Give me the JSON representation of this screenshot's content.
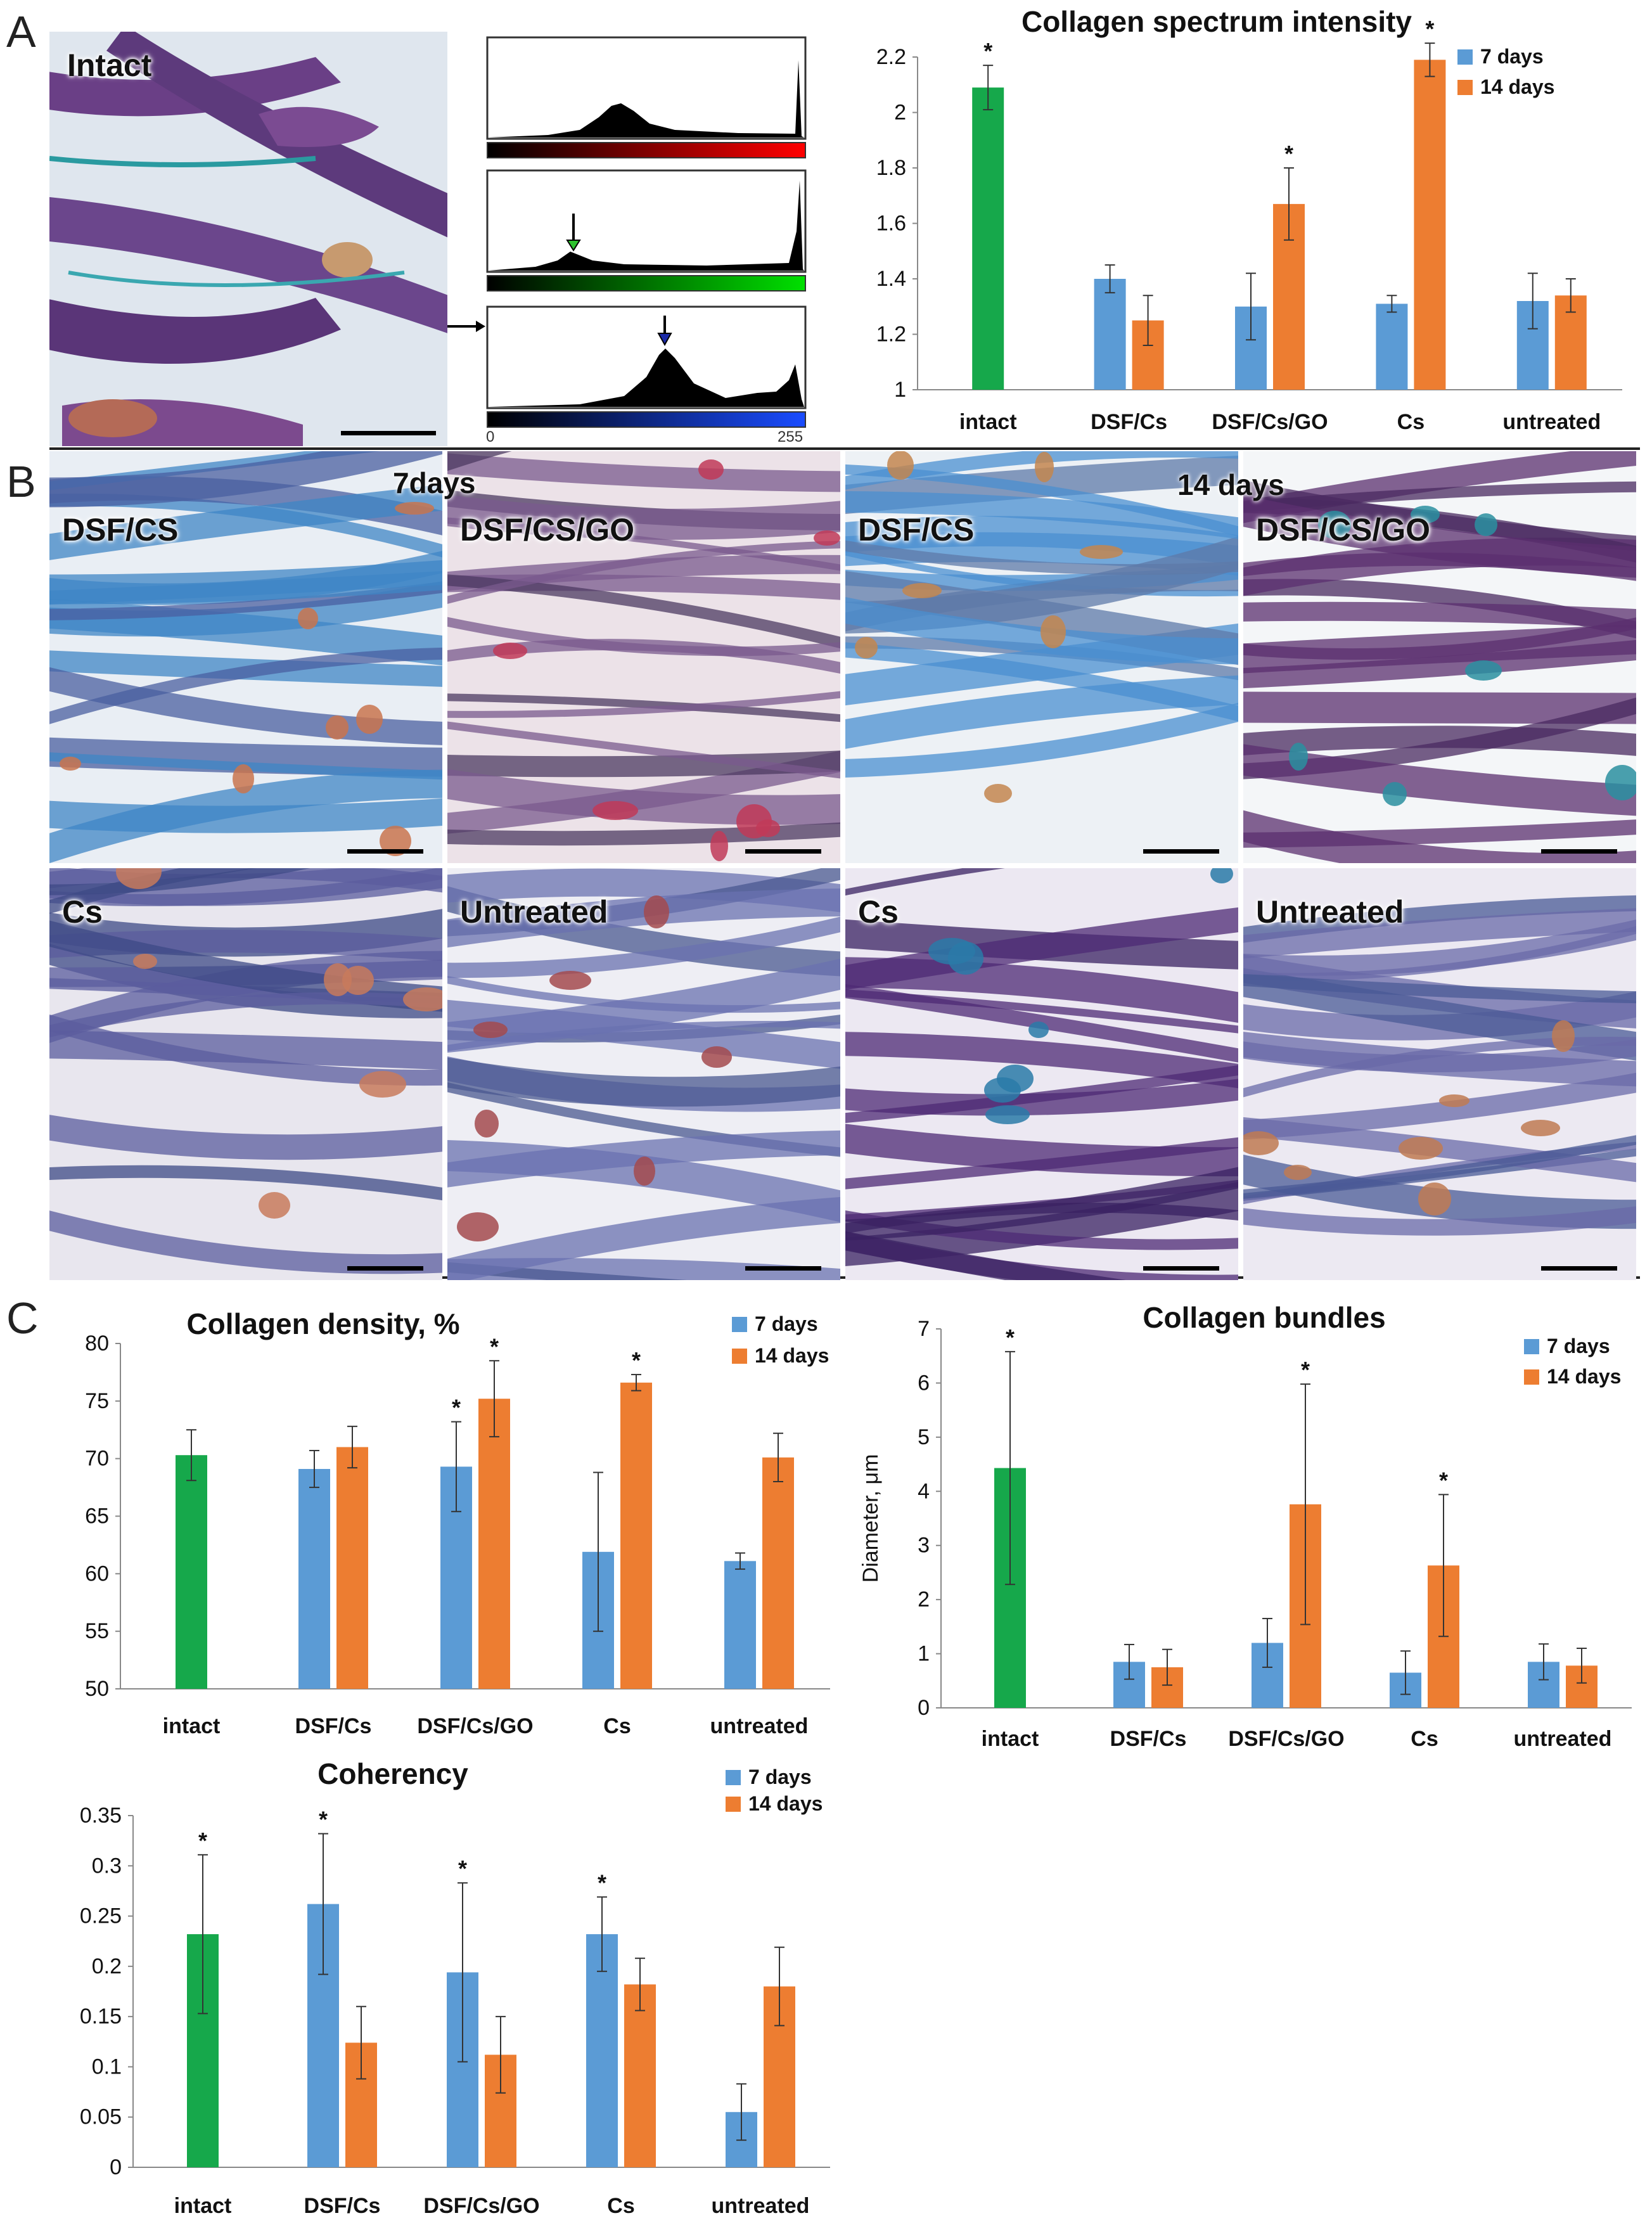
{
  "panels": {
    "A": "A",
    "B": "B",
    "C": "C"
  },
  "panel_a": {
    "intact_label": "Intact",
    "histogram_axis_min": "0",
    "histogram_axis_max": "255"
  },
  "panel_b": {
    "header_7": "7days",
    "header_14": "14 days",
    "tiles": [
      {
        "label": "DSF/CS"
      },
      {
        "label": "DSF/CS/GO"
      },
      {
        "label": "DSF/CS"
      },
      {
        "label": "DSF/CS/GO"
      },
      {
        "label": "Cs"
      },
      {
        "label": "Untreated"
      },
      {
        "label": "Cs"
      },
      {
        "label": "Untreated"
      }
    ]
  },
  "colors": {
    "intact": "#16a84b",
    "days7": "#5b9bd5",
    "days14": "#ed7d31"
  },
  "chart_data": [
    {
      "id": "spectrum",
      "type": "bar",
      "title": "Collagen spectrum intensity",
      "ylabel": "",
      "ylim": [
        1,
        2.2
      ],
      "yticks": [
        1,
        1.2,
        1.4,
        1.6,
        1.8,
        2,
        2.2
      ],
      "yticklabels": [
        "1",
        "1.2",
        "1.4",
        "1.6",
        "1.8",
        "2",
        "2.2"
      ],
      "legend": [
        "7 days",
        "14 days"
      ],
      "legend_position": "top-right",
      "categories": [
        "intact",
        "DSF/Cs",
        "DSF/Cs/GO",
        "Cs",
        "untreated"
      ],
      "intact": {
        "value": 2.09,
        "err": 0.08,
        "star": true
      },
      "series": [
        {
          "name": "7 days",
          "values": [
            null,
            1.4,
            1.3,
            1.31,
            1.32
          ],
          "err": [
            null,
            0.05,
            0.12,
            0.03,
            0.1
          ],
          "stars": [
            false,
            false,
            false,
            false,
            false
          ]
        },
        {
          "name": "14 days",
          "values": [
            null,
            1.25,
            1.67,
            2.19,
            1.34
          ],
          "err": [
            null,
            0.09,
            0.13,
            0.06,
            0.06
          ],
          "stars": [
            false,
            false,
            true,
            true,
            false
          ]
        }
      ]
    },
    {
      "id": "density",
      "type": "bar",
      "title": "Collagen density, %",
      "ylabel": "",
      "ylim": [
        50,
        80
      ],
      "yticks": [
        50,
        55,
        60,
        65,
        70,
        75,
        80
      ],
      "yticklabels": [
        "50",
        "55",
        "60",
        "65",
        "70",
        "75",
        "80"
      ],
      "legend": [
        "7 days",
        "14 days"
      ],
      "legend_position": "top-right",
      "categories": [
        "intact",
        "DSF/Cs",
        "DSF/Cs/GO",
        "Cs",
        "untreated"
      ],
      "intact": {
        "value": 70.3,
        "err": 2.2,
        "star": false
      },
      "series": [
        {
          "name": "7 days",
          "values": [
            null,
            69.1,
            69.3,
            61.9,
            61.1
          ],
          "err": [
            null,
            1.6,
            3.9,
            6.9,
            0.7
          ],
          "stars": [
            false,
            false,
            true,
            false,
            false
          ]
        },
        {
          "name": "14 days",
          "values": [
            null,
            71.0,
            75.2,
            76.6,
            70.1
          ],
          "err": [
            null,
            1.8,
            3.3,
            0.7,
            2.1
          ],
          "stars": [
            false,
            false,
            true,
            true,
            false
          ]
        }
      ]
    },
    {
      "id": "bundles",
      "type": "bar",
      "title": "Collagen bundles",
      "ylabel": "Diameter, μm",
      "ylim": [
        0,
        7
      ],
      "yticks": [
        0,
        1,
        2,
        3,
        4,
        5,
        6,
        7
      ],
      "yticklabels": [
        "0",
        "1",
        "2",
        "3",
        "4",
        "5",
        "6",
        "7"
      ],
      "legend": [
        "7 days",
        "14 days"
      ],
      "legend_position": "top-right",
      "categories": [
        "intact",
        "DSF/Cs",
        "DSF/Cs/GO",
        "Cs",
        "untreated"
      ],
      "intact": {
        "value": 4.43,
        "err": 2.15,
        "star": true
      },
      "series": [
        {
          "name": "7 days",
          "values": [
            null,
            0.85,
            1.2,
            0.65,
            0.85
          ],
          "err": [
            null,
            0.32,
            0.45,
            0.4,
            0.33
          ],
          "stars": [
            false,
            false,
            false,
            false,
            false
          ]
        },
        {
          "name": "14 days",
          "values": [
            null,
            0.75,
            3.76,
            2.63,
            0.78
          ],
          "err": [
            null,
            0.33,
            2.22,
            1.31,
            0.32
          ],
          "stars": [
            false,
            false,
            true,
            true,
            false
          ]
        }
      ]
    },
    {
      "id": "coherency",
      "type": "bar",
      "title": "Coherency",
      "ylabel": "",
      "ylim": [
        0,
        0.35
      ],
      "yticks": [
        0,
        0.05,
        0.1,
        0.15,
        0.2,
        0.25,
        0.3,
        0.35
      ],
      "yticklabels": [
        "0",
        "0.05",
        "0.1",
        "0.15",
        "0.2",
        "0.25",
        "0.3",
        "0.35"
      ],
      "legend": [
        "7 days",
        "14 days"
      ],
      "legend_position": "top-right",
      "categories": [
        "intact",
        "DSF/Cs",
        "DSF/Cs/GO",
        "Cs",
        "untreated"
      ],
      "intact": {
        "value": 0.232,
        "err": 0.079,
        "star": true
      },
      "series": [
        {
          "name": "7 days",
          "values": [
            null,
            0.262,
            0.194,
            0.232,
            0.055
          ],
          "err": [
            null,
            0.07,
            0.089,
            0.037,
            0.028
          ],
          "stars": [
            false,
            true,
            true,
            true,
            false
          ]
        },
        {
          "name": "14 days",
          "values": [
            null,
            0.124,
            0.112,
            0.182,
            0.18
          ],
          "err": [
            null,
            0.036,
            0.038,
            0.026,
            0.039
          ],
          "stars": [
            false,
            false,
            false,
            false,
            false
          ]
        }
      ]
    }
  ]
}
